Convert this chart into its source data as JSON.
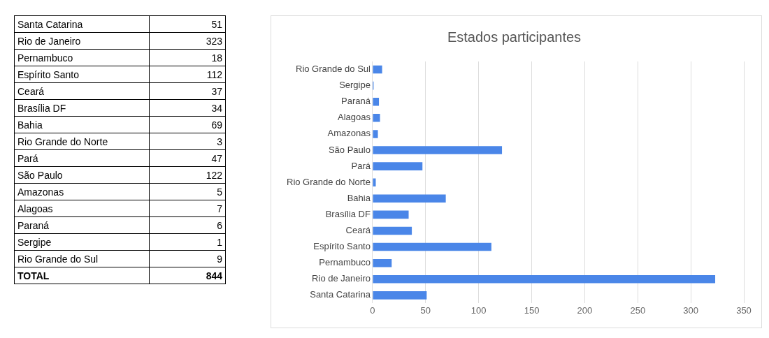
{
  "chart_data": [
    {
      "type": "other",
      "categories": [
        "Santa Catarina",
        "Rio de Janeiro",
        "Pernambuco",
        "Espírito Santo",
        "Ceará",
        "Brasília DF",
        "Bahia",
        "Rio Grande do Norte",
        "Pará",
        "São Paulo",
        "Amazonas",
        "Alagoas",
        "Paraná",
        "Sergipe",
        "Rio Grande do Sul"
      ],
      "value_labels": [
        "51",
        "323",
        "18",
        "112",
        "37",
        "34",
        "69",
        "3",
        "47",
        "122",
        "5",
        "7",
        "6",
        "1",
        "9"
      ],
      "annotations": [
        "TOTAL",
        "844"
      ]
    },
    {
      "type": "bar",
      "orientation": "horizontal",
      "title": "Estados participantes",
      "categories": [
        "Rio Grande do Sul",
        "Sergipe",
        "Paraná",
        "Alagoas",
        "Amazonas",
        "São Paulo",
        "Pará",
        "Rio Grande do Norte",
        "Bahia",
        "Brasília DF",
        "Ceará",
        "Espírito Santo",
        "Pernambuco",
        "Rio de Janeiro",
        "Santa Catarina"
      ],
      "values": [
        9,
        1,
        6,
        7,
        5,
        122,
        47,
        3,
        69,
        34,
        37,
        112,
        18,
        323,
        51
      ],
      "color": "#4a86e8",
      "xlim": [
        0,
        350
      ],
      "xticks": [
        0,
        50,
        100,
        150,
        200,
        250,
        300,
        350
      ],
      "grid": "x",
      "legend": false
    }
  ]
}
